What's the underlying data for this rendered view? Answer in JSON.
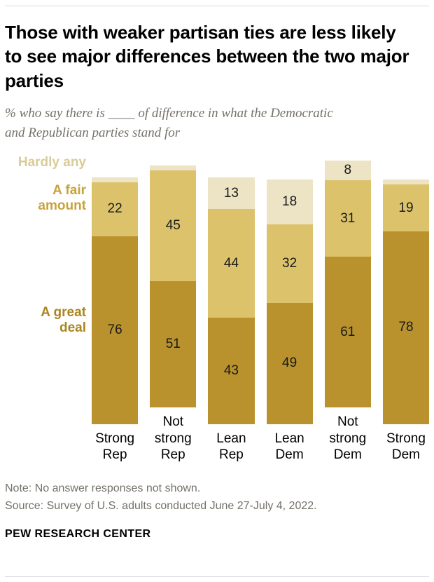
{
  "header": {
    "title": "Those with weaker partisan ties are less likely to see major differences between the two major parties",
    "subtitle": "% who say there is ____ of difference in what the Democratic and Republican parties stand for"
  },
  "chart_data": {
    "type": "bar",
    "subtype": "stacked-vertical",
    "categories": [
      "Strong Rep",
      "Not strong Rep",
      "Lean Rep",
      "Lean Dem",
      "Not strong Dem",
      "Strong Dem"
    ],
    "series": [
      {
        "name": "A great deal",
        "color": "#b9922e",
        "values": [
          76,
          51,
          43,
          49,
          61,
          78
        ]
      },
      {
        "name": "A fair amount",
        "color": "#dcc36b",
        "values": [
          22,
          45,
          44,
          32,
          31,
          19
        ]
      },
      {
        "name": "Hardly any",
        "color": "#ece4c4",
        "values": [
          2,
          2,
          13,
          18,
          8,
          2
        ]
      }
    ],
    "label_min": 5,
    "ylim": [
      0,
      100
    ],
    "grid": false,
    "legend_position": "left"
  },
  "legend": {
    "hardly_any": {
      "label": "Hardly any",
      "color": "#d9cc96"
    },
    "fair_amount": {
      "label": "A fair amount",
      "color": "#c7a33c"
    },
    "great_deal": {
      "label": "A great deal",
      "color": "#ab861f"
    }
  },
  "footer": {
    "note": "Note: No answer responses not shown.",
    "source": "Source: Survey of U.S. adults conducted June 27-July 4, 2022.",
    "brand": "PEW RESEARCH CENTER"
  }
}
